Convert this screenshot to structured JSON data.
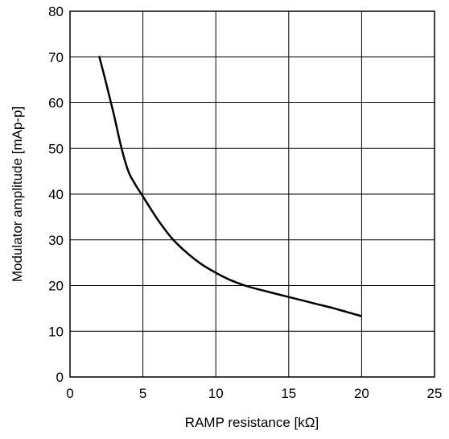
{
  "chart_data": {
    "type": "line",
    "title": "",
    "xlabel": "RAMP resistance [kΩ]",
    "ylabel": "Modulator amplitude [mAp-p]",
    "xlim": [
      0,
      25
    ],
    "ylim": [
      0,
      80
    ],
    "x_ticks": [
      "0",
      "5",
      "10",
      "15",
      "20",
      "25"
    ],
    "y_ticks": [
      "0",
      "10",
      "20",
      "30",
      "40",
      "50",
      "60",
      "70",
      "80"
    ],
    "grid": true,
    "legend": "none",
    "series": [
      {
        "color": "#000000",
        "x": [
          2,
          2.5,
          3,
          3.5,
          4,
          4.5,
          5,
          6,
          7,
          8,
          9,
          10,
          11,
          12,
          13,
          14,
          15,
          16,
          17,
          18,
          19,
          20
        ],
        "y": [
          70.2,
          64,
          57.5,
          50.5,
          45,
          42,
          39.5,
          34.5,
          30.3,
          27.2,
          24.7,
          22.8,
          21.2,
          20,
          19.1,
          18.3,
          17.5,
          16.7,
          15.9,
          15.1,
          14.2,
          13.3
        ]
      }
    ]
  }
}
